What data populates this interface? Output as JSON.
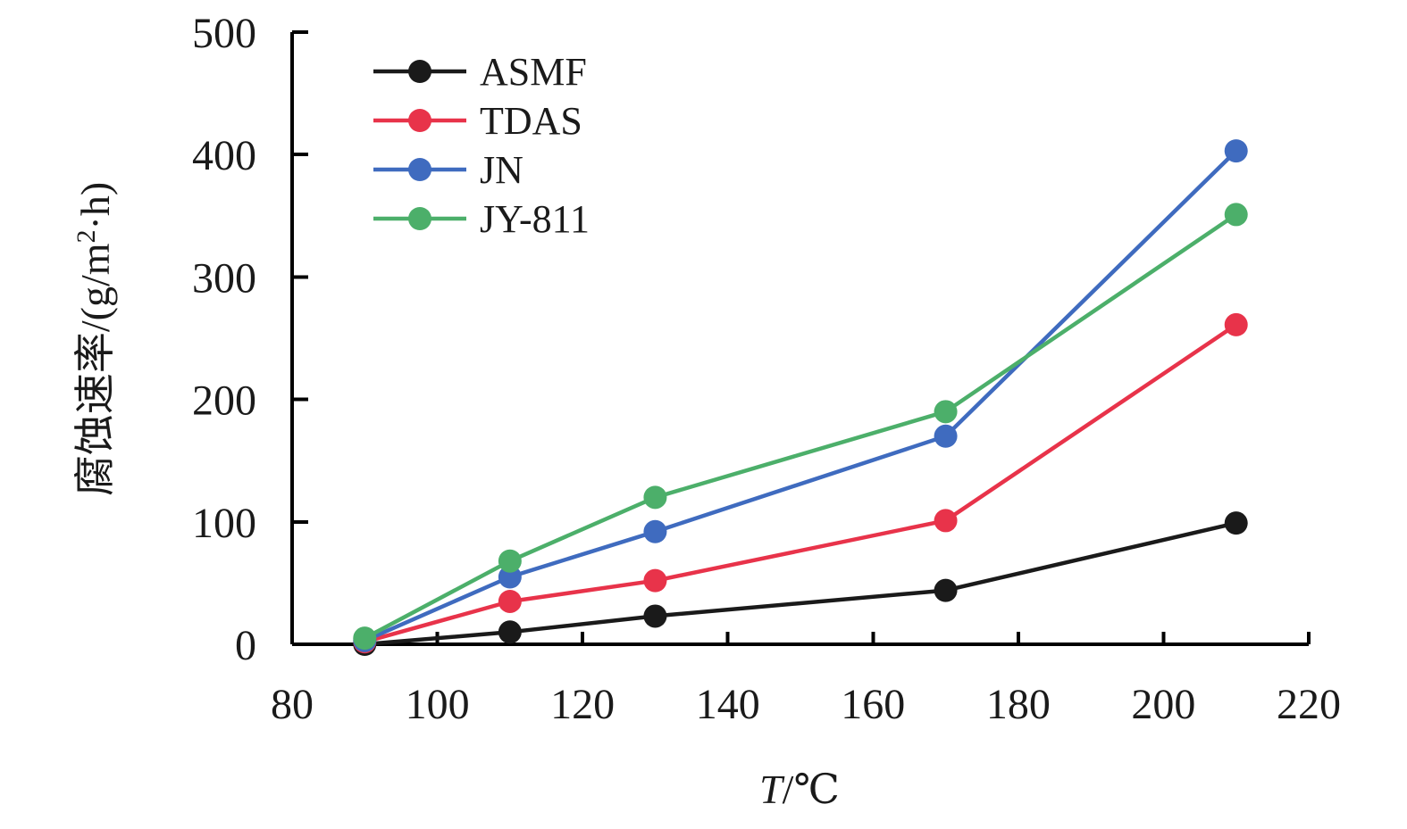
{
  "chart_data": {
    "type": "line",
    "x": [
      90,
      110,
      130,
      170,
      210
    ],
    "xlim": [
      80,
      220
    ],
    "x_ticks": [
      80,
      100,
      120,
      140,
      160,
      180,
      200,
      220
    ],
    "ylim": [
      0,
      500
    ],
    "y_ticks": [
      0,
      100,
      200,
      300,
      400,
      500
    ],
    "grid": false,
    "legend_position": "top-left",
    "xlabel_italic_part": "T",
    "xlabel_rest": "/℃",
    "ylabel_prefix": "腐蚀速率/(g/m",
    "ylabel_sup": "2",
    "ylabel_suffix": "·h)",
    "series": [
      {
        "name": "ASMF",
        "color": "#1a1a1a",
        "values": [
          0,
          10,
          23,
          44,
          99
        ]
      },
      {
        "name": "TDAS",
        "color": "#e8334a",
        "values": [
          2,
          35,
          52,
          101,
          261
        ]
      },
      {
        "name": "JN",
        "color": "#3f6bbf",
        "values": [
          3,
          55,
          92,
          170,
          403
        ]
      },
      {
        "name": "JY-811",
        "color": "#4caf6a",
        "values": [
          5,
          68,
          120,
          190,
          351
        ]
      }
    ]
  }
}
